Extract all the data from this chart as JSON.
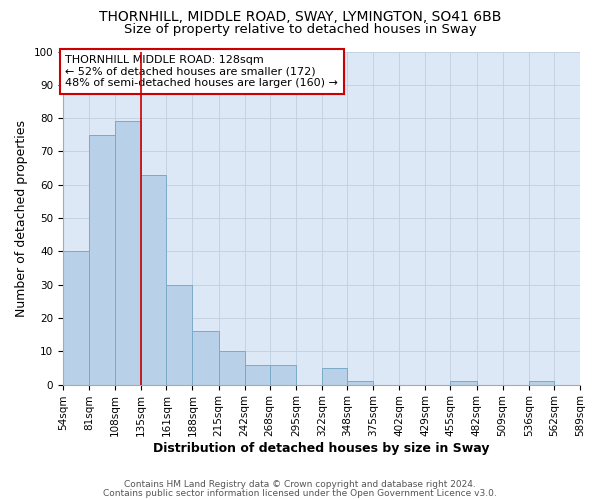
{
  "title": "THORNHILL, MIDDLE ROAD, SWAY, LYMINGTON, SO41 6BB",
  "subtitle": "Size of property relative to detached houses in Sway",
  "xlabel": "Distribution of detached houses by size in Sway",
  "ylabel": "Number of detached properties",
  "bar_edges": [
    54,
    81,
    108,
    135,
    161,
    188,
    215,
    242,
    268,
    295,
    322,
    348,
    375,
    402,
    429,
    455,
    482,
    509,
    536,
    562,
    589
  ],
  "bar_heights": [
    40,
    75,
    79,
    63,
    30,
    16,
    10,
    6,
    6,
    0,
    5,
    1,
    0,
    0,
    0,
    1,
    0,
    0,
    1,
    0
  ],
  "bar_color": "#b8d0e8",
  "bar_edge_color": "#7aaac8",
  "vertical_line_x": 135,
  "vertical_line_color": "#cc0000",
  "annotation_box_text": "THORNHILL MIDDLE ROAD: 128sqm\n← 52% of detached houses are smaller (172)\n48% of semi-detached houses are larger (160) →",
  "annotation_box_color": "#cc0000",
  "ylim": [
    0,
    100
  ],
  "yticks": [
    0,
    10,
    20,
    30,
    40,
    50,
    60,
    70,
    80,
    90,
    100
  ],
  "tick_labels": [
    "54sqm",
    "81sqm",
    "108sqm",
    "135sqm",
    "161sqm",
    "188sqm",
    "215sqm",
    "242sqm",
    "268sqm",
    "295sqm",
    "322sqm",
    "348sqm",
    "375sqm",
    "402sqm",
    "429sqm",
    "455sqm",
    "482sqm",
    "509sqm",
    "536sqm",
    "562sqm",
    "589sqm"
  ],
  "footer_line1": "Contains HM Land Registry data © Crown copyright and database right 2024.",
  "footer_line2": "Contains public sector information licensed under the Open Government Licence v3.0.",
  "bg_color": "#ffffff",
  "plot_bg_color": "#dce8f5",
  "title_fontsize": 10,
  "subtitle_fontsize": 9.5,
  "axis_label_fontsize": 9,
  "tick_fontsize": 7.5,
  "annotation_fontsize": 8,
  "footer_fontsize": 6.5
}
